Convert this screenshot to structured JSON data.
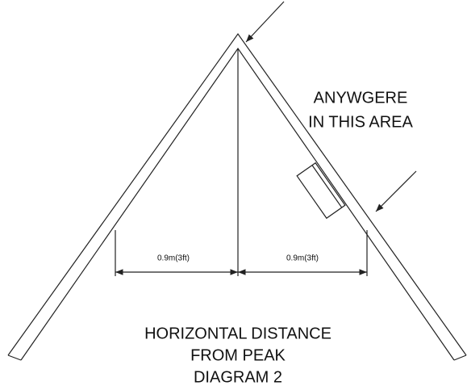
{
  "area_label": [
    "ANYWGERE",
    "IN THIS AREA"
  ],
  "dimensions": [
    "0.9m(3ft)",
    "0.9m(3ft)"
  ],
  "caption": [
    "HORIZONTAL DISTANCE",
    "FROM PEAK",
    "DIAGRAM 2"
  ]
}
